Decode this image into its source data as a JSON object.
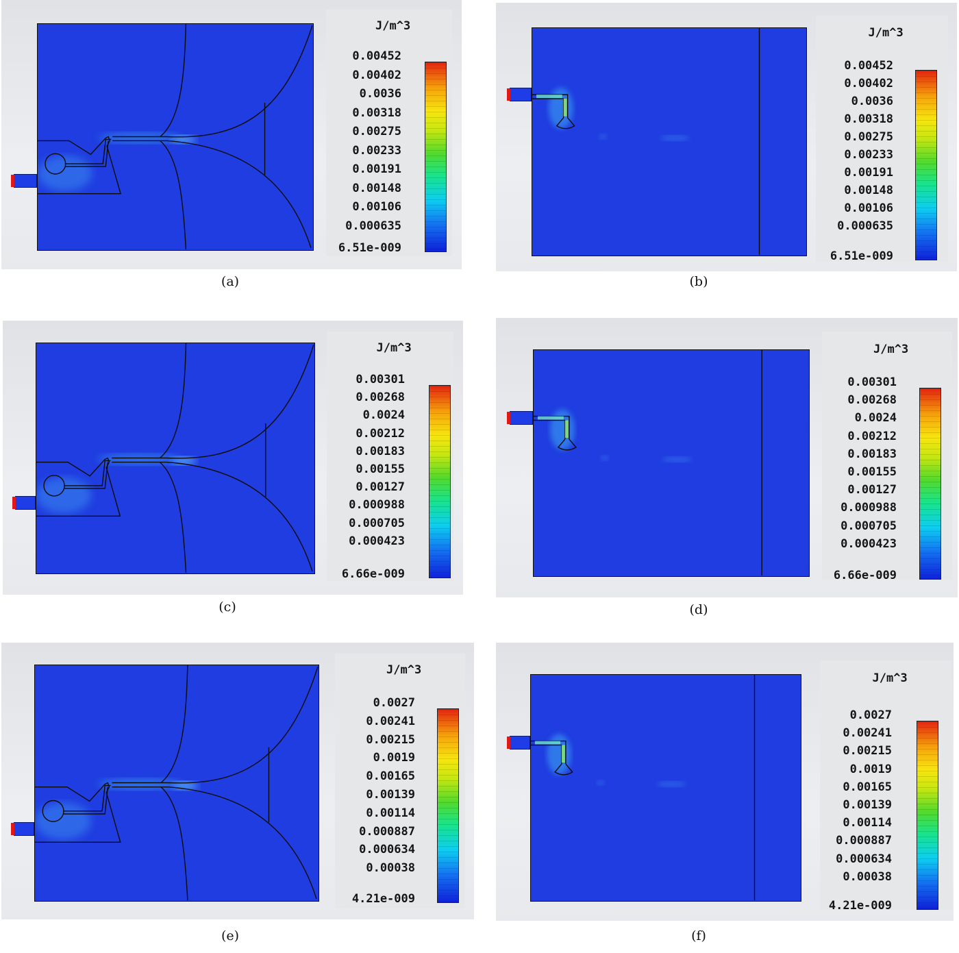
{
  "panels": [
    {
      "id": "a",
      "caption": "(a)",
      "unit": "J/m^3",
      "ticks": [
        "0.00452",
        "0.00402",
        "0.0036",
        "0.00318",
        "0.00275",
        "0.00233",
        "0.00191",
        "0.00148",
        "0.00106",
        "0.000635",
        "6.51e-009"
      ]
    },
    {
      "id": "b",
      "caption": "(b)",
      "unit": "J/m^3",
      "ticks": [
        "0.00452",
        "0.00402",
        "0.0036",
        "0.00318",
        "0.00275",
        "0.00233",
        "0.00191",
        "0.00148",
        "0.00106",
        "0.000635",
        "6.51e-009"
      ]
    },
    {
      "id": "c",
      "caption": "(c)",
      "unit": "J/m^3",
      "ticks": [
        "0.00301",
        "0.00268",
        "0.0024",
        "0.00212",
        "0.00183",
        "0.00155",
        "0.00127",
        "0.000988",
        "0.000705",
        "0.000423",
        "6.66e-009"
      ]
    },
    {
      "id": "d",
      "caption": "(d)",
      "unit": "J/m^3",
      "ticks": [
        "0.00301",
        "0.00268",
        "0.0024",
        "0.00212",
        "0.00183",
        "0.00155",
        "0.00127",
        "0.000988",
        "0.000705",
        "0.000423",
        "6.66e-009"
      ]
    },
    {
      "id": "e",
      "caption": "(e)",
      "unit": "J/m^3",
      "ticks": [
        "0.0027",
        "0.00241",
        "0.00215",
        "0.0019",
        "0.00165",
        "0.00139",
        "0.00114",
        "0.000887",
        "0.000634",
        "0.00038",
        "4.21e-009"
      ]
    },
    {
      "id": "f",
      "caption": "(f)",
      "unit": "J/m^3",
      "ticks": [
        "0.0027",
        "0.00241",
        "0.00215",
        "0.0019",
        "0.00165",
        "0.00139",
        "0.00114",
        "0.000887",
        "0.000634",
        "0.00038",
        "4.21e-009"
      ]
    }
  ],
  "colors": {
    "substrate": "#1f3de0",
    "outline": "#0c0c0c",
    "port_marker": "#e01818",
    "background": "#e6e7e9"
  }
}
